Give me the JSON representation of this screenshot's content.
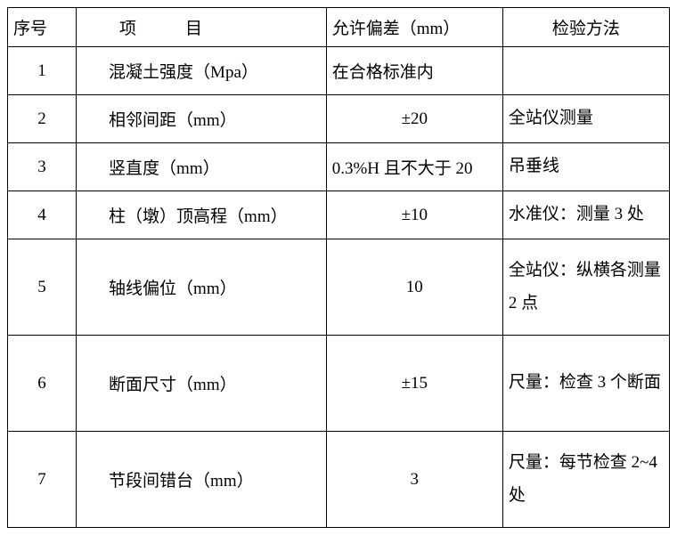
{
  "table": {
    "columns": [
      "序号",
      "项目",
      "允许偏差（mm）",
      "检验方法"
    ],
    "col_header_item_text": "项　目",
    "rows": [
      {
        "seq": "1",
        "item": "混凝土强度（Mpa）",
        "tol": "在合格标准内",
        "tol_align": "left",
        "method": "",
        "height": "row-h1"
      },
      {
        "seq": "2",
        "item": "相邻间距（mm）",
        "tol": "±20",
        "tol_align": "center",
        "method": "全站仪测量",
        "height": "row-h1"
      },
      {
        "seq": "3",
        "item": "竖直度（mm）",
        "tol": "0.3%H 且不大于 20",
        "tol_align": "left",
        "method": "吊垂线",
        "height": "row-h1"
      },
      {
        "seq": "4",
        "item": "柱（墩）顶高程（mm）",
        "tol": "±10",
        "tol_align": "center",
        "method": "水准仪：测量 3 处",
        "height": "row-h1"
      },
      {
        "seq": "5",
        "item": "轴线偏位（mm）",
        "tol": "10",
        "tol_align": "center",
        "method": "全站仪：纵横各测量 2 点",
        "height": "row-h2"
      },
      {
        "seq": "6",
        "item": "断面尺寸（mm）",
        "tol": "±15",
        "tol_align": "center",
        "method": "尺量：检查 3 个断面",
        "height": "row-h2"
      },
      {
        "seq": "7",
        "item": "节段间错台（mm）",
        "tol": "3",
        "tol_align": "center",
        "method": "尺量：每节检查 2~4 处",
        "height": "row-h2"
      }
    ],
    "border_color": "#000000",
    "background_color": "#ffffff",
    "font_size": 19,
    "text_color": "#000000"
  }
}
